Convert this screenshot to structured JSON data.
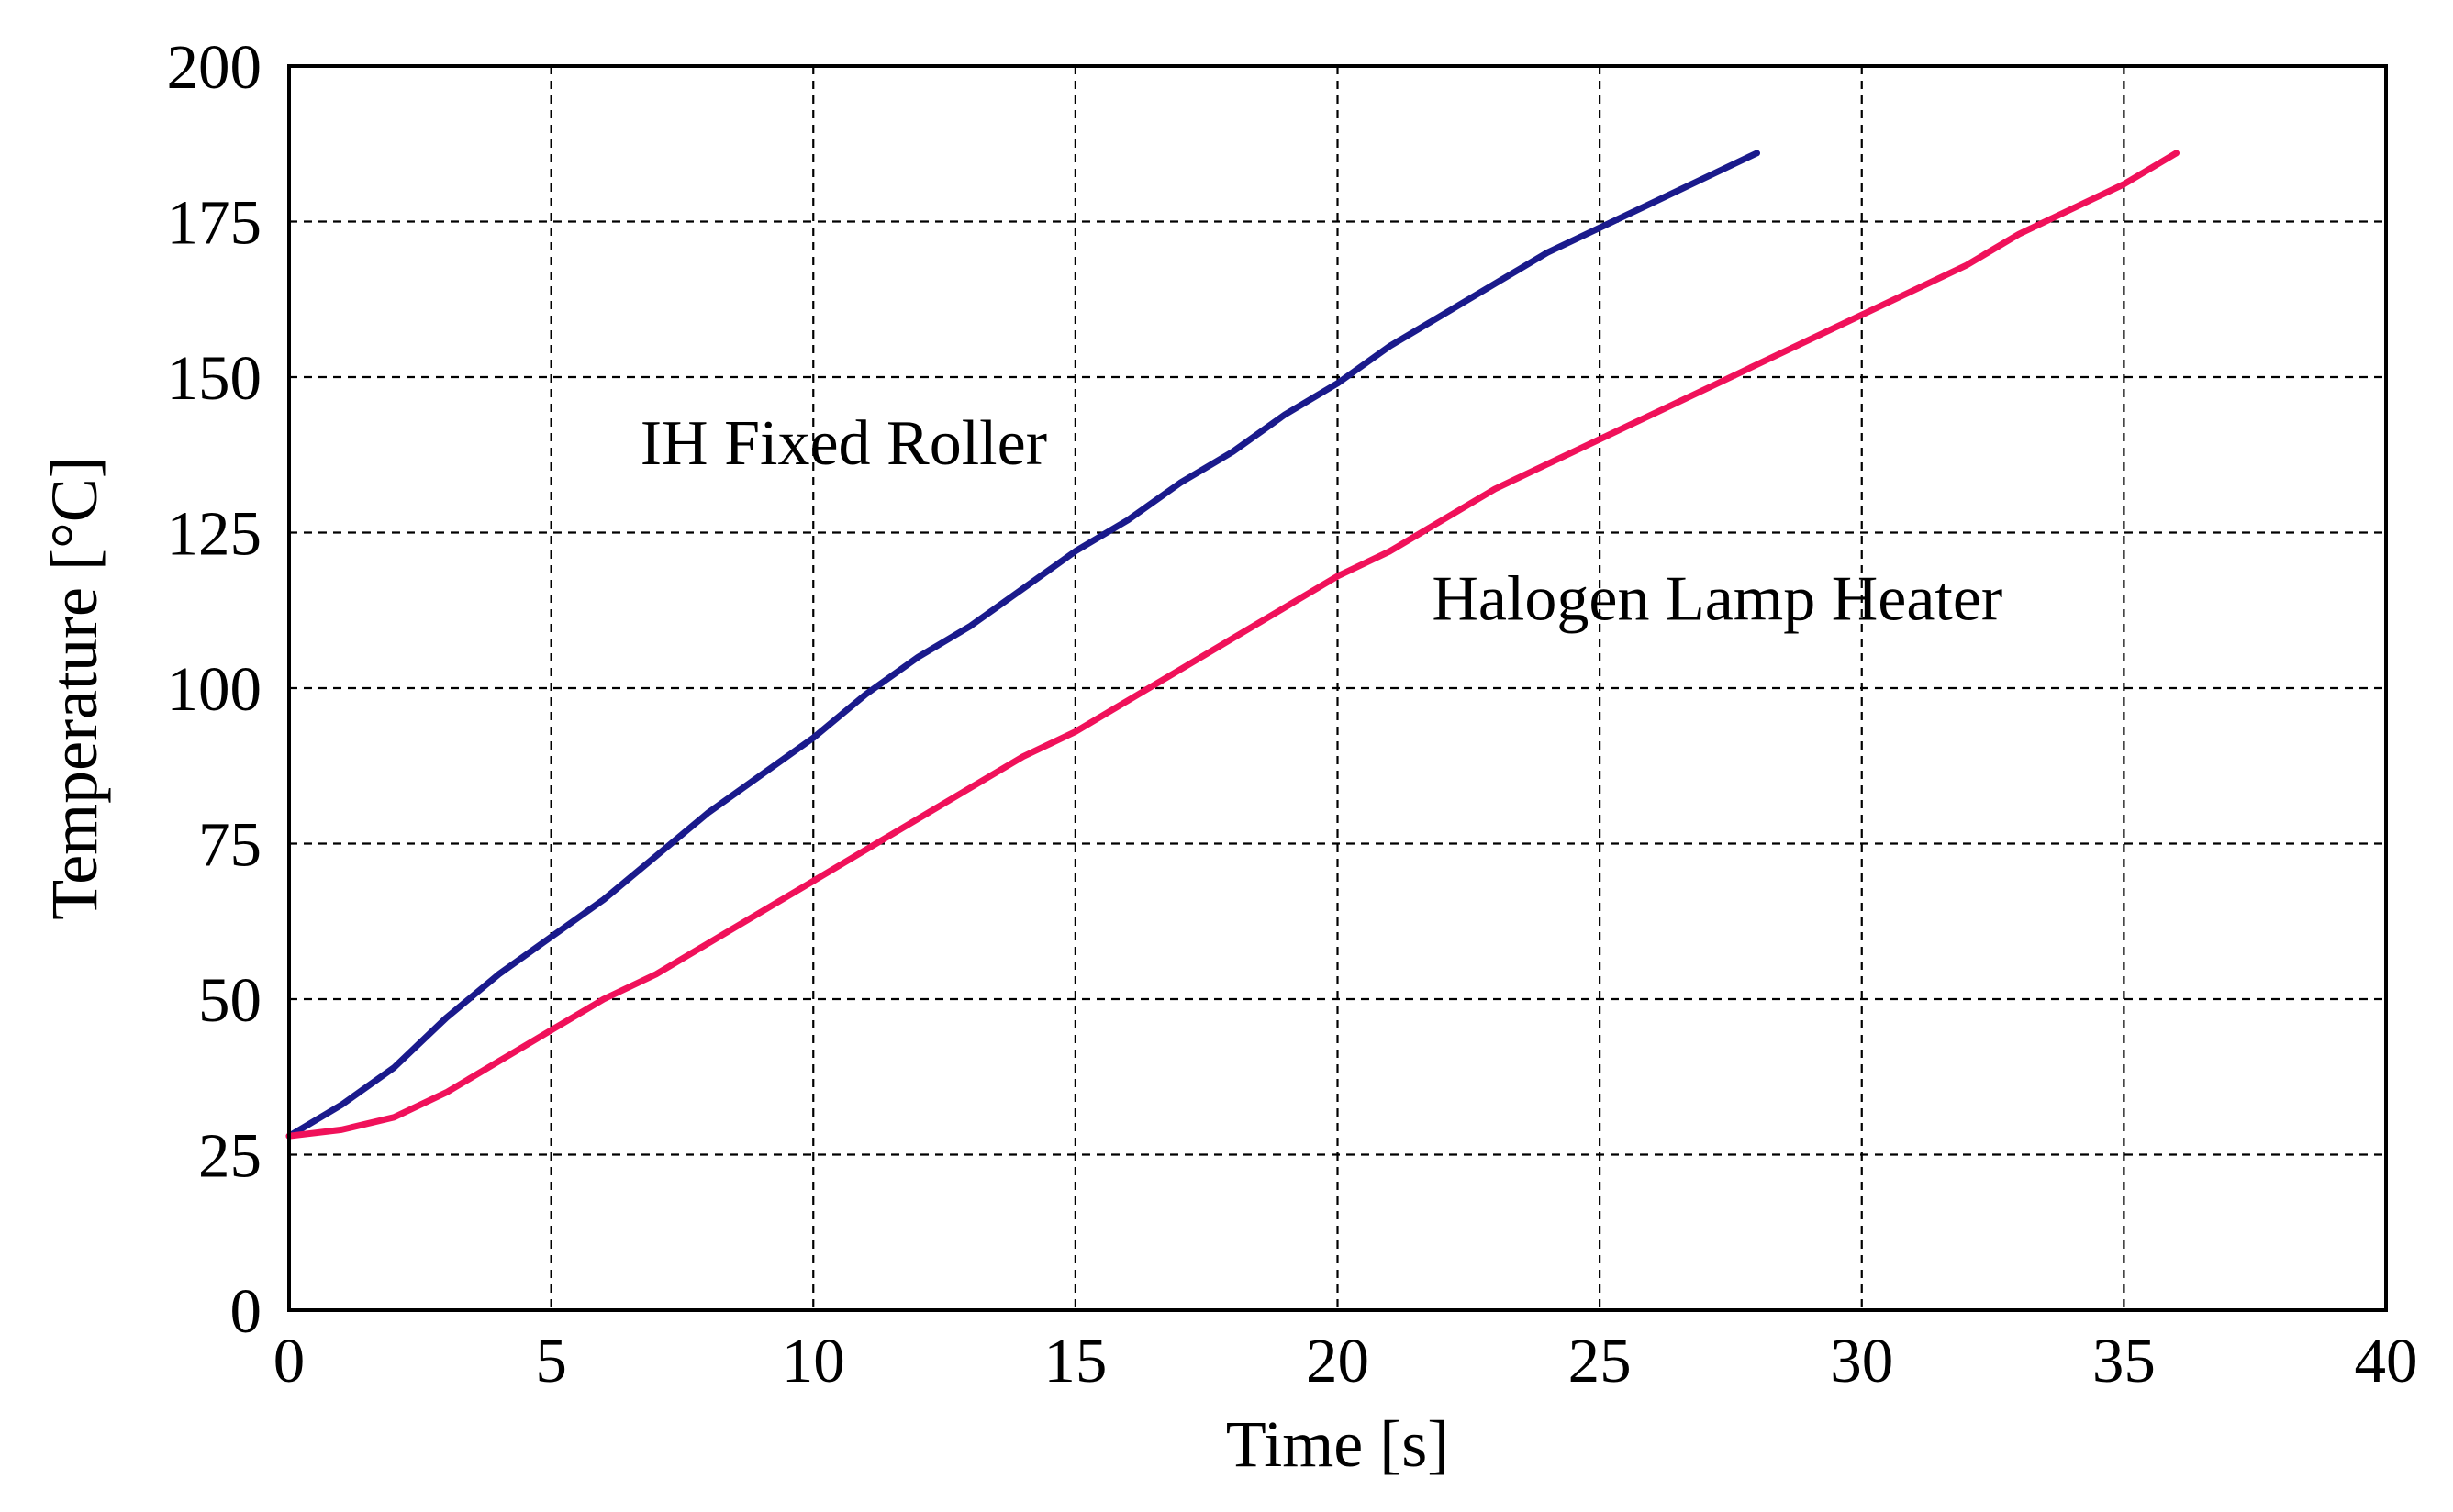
{
  "chart_data": {
    "type": "line",
    "title": "",
    "xlabel": "Time [s]",
    "ylabel": "Temperature [°C]",
    "xlim": [
      0,
      40
    ],
    "ylim": [
      0,
      200
    ],
    "x_ticks": [
      0,
      5,
      10,
      15,
      20,
      25,
      30,
      35,
      40
    ],
    "y_ticks": [
      0,
      25,
      50,
      75,
      100,
      125,
      150,
      175,
      200
    ],
    "grid": true,
    "legend": "none",
    "series": [
      {
        "name": "IH Fixed Roller",
        "color": "#1a1a8c",
        "x": [
          0,
          1,
          2,
          3,
          4,
          5,
          6,
          7,
          8,
          9,
          10,
          11,
          12,
          13,
          14,
          15,
          16,
          17,
          18,
          19,
          20,
          21,
          22,
          23,
          24,
          25,
          26,
          27,
          28
        ],
        "y": [
          28,
          33,
          39,
          47,
          54,
          60,
          66,
          73,
          80,
          86,
          92,
          99,
          105,
          110,
          116,
          122,
          127,
          133,
          138,
          144,
          149,
          155,
          160,
          165,
          170,
          174,
          178,
          182,
          186
        ]
      },
      {
        "name": "Halogen Lamp Heater",
        "color": "#f0115a",
        "x": [
          0,
          1,
          2,
          3,
          4,
          5,
          6,
          7,
          8,
          9,
          10,
          11,
          12,
          13,
          14,
          15,
          16,
          17,
          18,
          19,
          20,
          21,
          22,
          23,
          24,
          25,
          26,
          27,
          28,
          29,
          30,
          31,
          32,
          33,
          34,
          35,
          36
        ],
        "y": [
          28,
          29,
          31,
          35,
          40,
          45,
          50,
          54,
          59,
          64,
          69,
          74,
          79,
          84,
          89,
          93,
          98,
          103,
          108,
          113,
          118,
          122,
          127,
          132,
          136,
          140,
          144,
          148,
          152,
          156,
          160,
          164,
          168,
          173,
          177,
          181,
          186
        ]
      }
    ],
    "annotations": [
      {
        "text": "IH Fixed Roller",
        "x": 6.7,
        "y": 136
      },
      {
        "text": "Halogen Lamp Heater",
        "x": 21.8,
        "y": 111
      }
    ]
  }
}
